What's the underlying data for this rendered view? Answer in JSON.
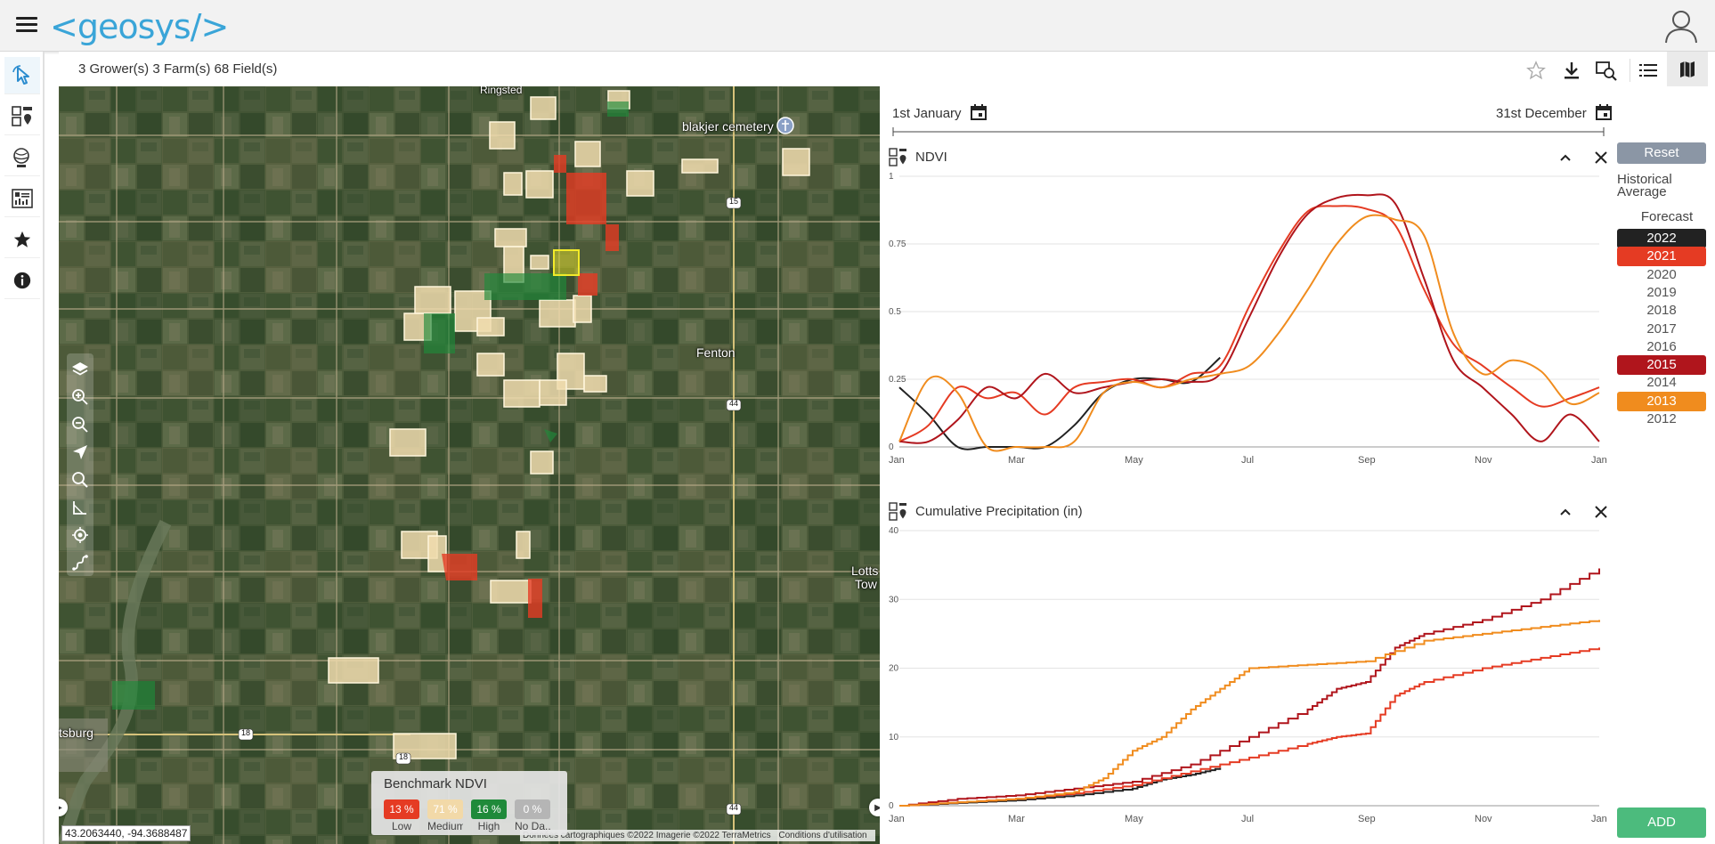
{
  "header": {
    "logo_text": "<geosys/>",
    "menu_icon": "hamburger-icon",
    "user_icon": "user-icon"
  },
  "sidebar": {
    "items": [
      {
        "icon": "select-pointer-icon"
      },
      {
        "icon": "field-map-icon"
      },
      {
        "icon": "globe-settings-icon"
      },
      {
        "icon": "report-icon"
      },
      {
        "icon": "star-icon"
      },
      {
        "icon": "info-icon"
      }
    ]
  },
  "subbar": {
    "counts": "3 Grower(s)  3 Farm(s)  68 Field(s)",
    "tools": [
      "star-icon",
      "download-icon",
      "zoom-compare-icon",
      "list-view-icon",
      "map-view-icon"
    ]
  },
  "map": {
    "labels": {
      "town1": "Ringsted",
      "cemetery": "blakjer cemetery",
      "fenton": "Fenton",
      "lotts": "Lotts",
      "lotts2": "Tow",
      "tsburg": "tsburg",
      "road15": "15",
      "road44a": "44",
      "road44b": "44",
      "road18a": "18",
      "road18b": "18"
    },
    "coordinates": "43.2063440, -94.3688487",
    "attribution": [
      "Données cartographiques ©2022 Imagerie ©2022 TerraMetrics",
      "Conditions d'utilisation"
    ],
    "legend": {
      "title": "Benchmark NDVI",
      "items": [
        {
          "value": "13 %",
          "label": "Low",
          "color": "#e53b23"
        },
        {
          "value": "71 %",
          "label": "Medium",
          "color": "#f2d9a8"
        },
        {
          "value": "16 %",
          "label": "High",
          "color": "#1f8a3a"
        },
        {
          "value": "0 %",
          "label": "No Da...",
          "color": "#b5b5b5"
        }
      ]
    }
  },
  "panel": {
    "start_date": "1st January",
    "end_date": "31st December",
    "reset_label": "Reset",
    "historical_label": "Historical Average",
    "forecast_label": "Forecast",
    "add_label": "ADD",
    "years": [
      {
        "year": "2022",
        "active": true,
        "color": "#222222"
      },
      {
        "year": "2021",
        "active": true,
        "color": "#e53b23"
      },
      {
        "year": "2020",
        "active": false
      },
      {
        "year": "2019",
        "active": false
      },
      {
        "year": "2018",
        "active": false
      },
      {
        "year": "2017",
        "active": false
      },
      {
        "year": "2016",
        "active": false
      },
      {
        "year": "2015",
        "active": true,
        "color": "#b0151c"
      },
      {
        "year": "2014",
        "active": false
      },
      {
        "year": "2013",
        "active": true,
        "color": "#f08c1e"
      },
      {
        "year": "2012",
        "active": false
      }
    ]
  },
  "chart_data": [
    {
      "type": "line",
      "title": "NDVI",
      "x_ticks": [
        "Jan",
        "Mar",
        "May",
        "Jul",
        "Sep",
        "Nov",
        "Jan"
      ],
      "y_ticks": [
        "0",
        "0.25",
        "0.5",
        "0.75",
        "1"
      ],
      "ylim": [
        0,
        1
      ],
      "x_unit": "month",
      "series": [
        {
          "name": "2022",
          "color": "#222222",
          "x": [
            0,
            0.5,
            1,
            1.5,
            2,
            2.5,
            3,
            3.5,
            4,
            4.5,
            5,
            5.5
          ],
          "y": [
            0.22,
            0.12,
            0,
            0,
            0,
            0,
            0.08,
            0.2,
            0.25,
            0.25,
            0.24,
            0.33
          ]
        },
        {
          "name": "2021",
          "color": "#e53b23",
          "x": [
            0,
            0.5,
            1,
            1.5,
            2,
            2.5,
            3,
            3.5,
            4,
            4.5,
            5,
            5.5,
            6,
            6.5,
            7,
            7.5,
            8,
            8.5,
            9,
            9.5,
            10,
            10.5,
            11,
            11.5,
            12
          ],
          "y": [
            0.02,
            0.08,
            0.22,
            0.18,
            0.2,
            0.12,
            0.22,
            0.24,
            0.25,
            0.22,
            0.27,
            0.3,
            0.52,
            0.72,
            0.87,
            0.89,
            0.88,
            0.82,
            0.58,
            0.38,
            0.3,
            0.22,
            0.15,
            0.18,
            0.22
          ]
        },
        {
          "name": "2015",
          "color": "#b0151c",
          "x": [
            0,
            0.5,
            1,
            1.5,
            2,
            2.5,
            3,
            3.5,
            4,
            4.5,
            5,
            5.5,
            6,
            6.5,
            7,
            7.5,
            8,
            8.5,
            9,
            9.5,
            10,
            10.5,
            11,
            11.5,
            12
          ],
          "y": [
            0.02,
            0.02,
            0.1,
            0.22,
            0.18,
            0.27,
            0.2,
            0.22,
            0.24,
            0.25,
            0.24,
            0.27,
            0.48,
            0.7,
            0.86,
            0.92,
            0.93,
            0.9,
            0.62,
            0.32,
            0.22,
            0.12,
            0.02,
            0.12,
            0.02
          ]
        },
        {
          "name": "2013",
          "color": "#f08c1e",
          "x": [
            0,
            0.5,
            1,
            1.5,
            2,
            2.5,
            3,
            3.5,
            4,
            4.5,
            5,
            5.5,
            6,
            6.5,
            7,
            7.5,
            8,
            8.5,
            9,
            9.5,
            10,
            10.5,
            11,
            11.5,
            12
          ],
          "y": [
            0.02,
            0.25,
            0.2,
            0.0,
            0.0,
            0.0,
            0.02,
            0.2,
            0.24,
            0.22,
            0.25,
            0.27,
            0.3,
            0.42,
            0.58,
            0.75,
            0.85,
            0.84,
            0.78,
            0.42,
            0.27,
            0.32,
            0.28,
            0.16,
            0.2
          ]
        }
      ]
    },
    {
      "type": "line",
      "title": "Cumulative Precipitation (in)",
      "x_ticks": [
        "Jan",
        "Mar",
        "May",
        "Jul",
        "Sep",
        "Nov",
        "Jan"
      ],
      "y_ticks": [
        "0",
        "10",
        "20",
        "30",
        "40"
      ],
      "ylim": [
        0,
        40
      ],
      "x_unit": "month",
      "series": [
        {
          "name": "2022",
          "color": "#222222",
          "x": [
            0,
            1,
            2,
            3,
            4,
            4.5,
            5,
            5.5
          ],
          "y": [
            0,
            0.4,
            0.8,
            1.5,
            2.5,
            3.8,
            4.5,
            5.5
          ]
        },
        {
          "name": "2021",
          "color": "#e53b23",
          "x": [
            0,
            1,
            2,
            3,
            4,
            5,
            6,
            7,
            7.5,
            8,
            8.5,
            9,
            10,
            11,
            12
          ],
          "y": [
            0,
            0.5,
            1,
            1.8,
            3,
            5,
            7,
            9,
            10,
            10.5,
            16,
            18,
            20,
            21.5,
            23
          ]
        },
        {
          "name": "2015",
          "color": "#b0151c",
          "x": [
            0,
            1,
            2,
            3,
            4,
            5,
            6,
            7,
            7.5,
            8,
            8.5,
            9,
            10,
            11,
            12
          ],
          "y": [
            0,
            1,
            1.5,
            2.5,
            3.5,
            6,
            10,
            14,
            17,
            18,
            23,
            25,
            27,
            30,
            34.5
          ]
        },
        {
          "name": "2013",
          "color": "#f08c1e",
          "x": [
            0,
            1,
            2,
            3,
            3.5,
            4,
            4.5,
            5,
            5.5,
            6,
            7,
            8,
            9,
            10,
            11,
            12
          ],
          "y": [
            0,
            0.5,
            1,
            2,
            4,
            8,
            10,
            14,
            17,
            20,
            20.5,
            21,
            24,
            25,
            26,
            27
          ]
        }
      ]
    }
  ]
}
